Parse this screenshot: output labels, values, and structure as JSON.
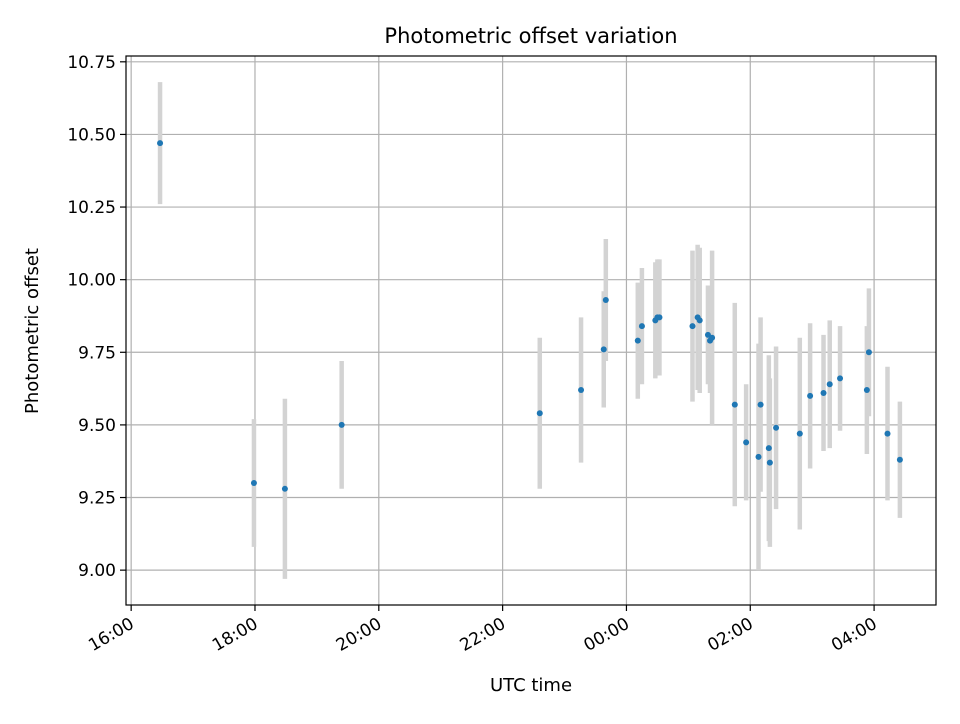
{
  "chart_data": {
    "type": "scatter",
    "title": "Photometric offset variation",
    "xlabel": "UTC time",
    "ylabel": "Photometric offset",
    "x_is_time": true,
    "x_range": [
      "15:55",
      "05:00"
    ],
    "y_range": [
      8.88,
      10.77
    ],
    "x_ticks": [
      "16:00",
      "18:00",
      "20:00",
      "22:00",
      "00:00",
      "02:00",
      "04:00"
    ],
    "y_ticks": [
      "9.00",
      "9.25",
      "9.50",
      "9.75",
      "10.00",
      "10.25",
      "10.50",
      "10.75"
    ],
    "grid": true,
    "point_color": "#1f77b4",
    "errorbar_color": "#d3d3d3",
    "points": [
      {
        "t": "16:28",
        "y": 10.47,
        "err": 0.21
      },
      {
        "t": "17:59",
        "y": 9.3,
        "err": 0.22
      },
      {
        "t": "18:29",
        "y": 9.28,
        "err": 0.31
      },
      {
        "t": "19:24",
        "y": 9.5,
        "err": 0.22
      },
      {
        "t": "22:36",
        "y": 9.54,
        "err": 0.26
      },
      {
        "t": "23:16",
        "y": 9.62,
        "err": 0.25
      },
      {
        "t": "23:38",
        "y": 9.76,
        "err": 0.2
      },
      {
        "t": "23:40",
        "y": 9.93,
        "err": 0.21
      },
      {
        "t": "00:11",
        "y": 9.79,
        "err": 0.2
      },
      {
        "t": "00:15",
        "y": 9.84,
        "err": 0.2
      },
      {
        "t": "00:28",
        "y": 9.86,
        "err": 0.2
      },
      {
        "t": "00:30",
        "y": 9.87,
        "err": 0.2
      },
      {
        "t": "00:32",
        "y": 9.87,
        "err": 0.2
      },
      {
        "t": "01:04",
        "y": 9.84,
        "err": 0.26
      },
      {
        "t": "01:09",
        "y": 9.87,
        "err": 0.25
      },
      {
        "t": "01:11",
        "y": 9.86,
        "err": 0.25
      },
      {
        "t": "01:19",
        "y": 9.81,
        "err": 0.17
      },
      {
        "t": "01:21",
        "y": 9.79,
        "err": 0.18
      },
      {
        "t": "01:23",
        "y": 9.8,
        "err": 0.3
      },
      {
        "t": "01:45",
        "y": 9.57,
        "err": 0.35
      },
      {
        "t": "01:56",
        "y": 9.44,
        "err": 0.2
      },
      {
        "t": "02:08",
        "y": 9.39,
        "err": 0.39
      },
      {
        "t": "02:10",
        "y": 9.57,
        "err": 0.3
      },
      {
        "t": "02:18",
        "y": 9.42,
        "err": 0.32
      },
      {
        "t": "02:19",
        "y": 9.37,
        "err": 0.29
      },
      {
        "t": "02:25",
        "y": 9.49,
        "err": 0.28
      },
      {
        "t": "02:48",
        "y": 9.47,
        "err": 0.33
      },
      {
        "t": "02:58",
        "y": 9.6,
        "err": 0.25
      },
      {
        "t": "03:11",
        "y": 9.61,
        "err": 0.2
      },
      {
        "t": "03:17",
        "y": 9.64,
        "err": 0.22
      },
      {
        "t": "03:27",
        "y": 9.66,
        "err": 0.18
      },
      {
        "t": "03:53",
        "y": 9.62,
        "err": 0.22
      },
      {
        "t": "03:55",
        "y": 9.75,
        "err": 0.22
      },
      {
        "t": "04:13",
        "y": 9.47,
        "err": 0.23
      },
      {
        "t": "04:25",
        "y": 9.38,
        "err": 0.2
      }
    ]
  }
}
